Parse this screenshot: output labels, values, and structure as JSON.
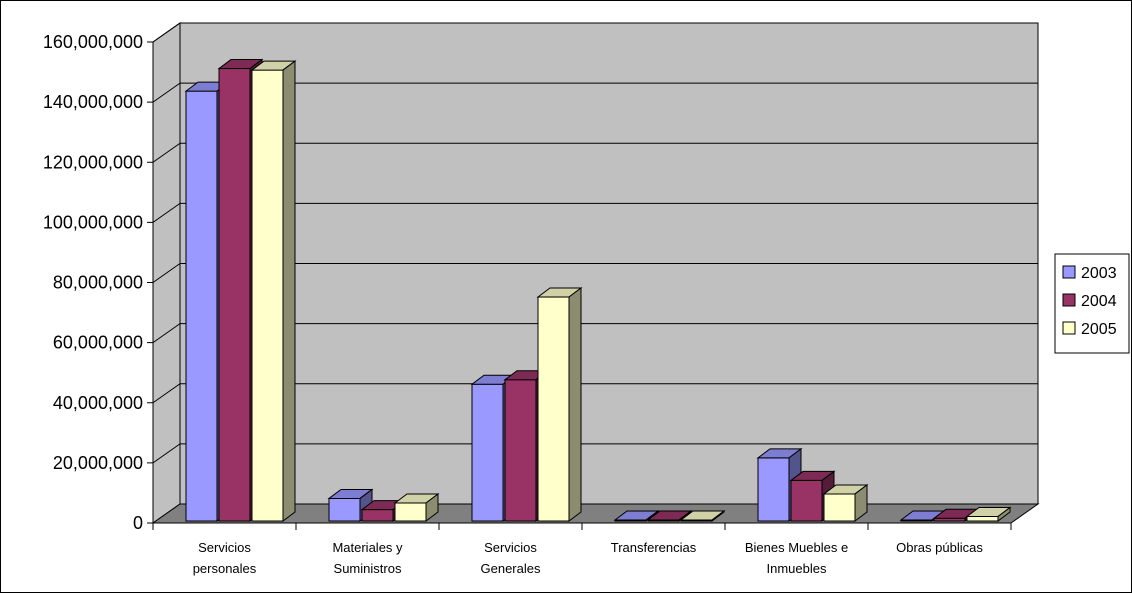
{
  "chart_data": {
    "type": "bar",
    "title": "",
    "xlabel": "",
    "ylabel": "",
    "ylim": [
      0,
      160000000
    ],
    "yticks": [
      "0",
      "20,000,000",
      "40,000,000",
      "60,000,000",
      "80,000,000",
      "100,000,000",
      "120,000,000",
      "140,000,000",
      "160,000,000"
    ],
    "ytick_values": [
      0,
      20000000,
      40000000,
      60000000,
      80000000,
      100000000,
      120000000,
      140000000,
      160000000
    ],
    "categories": [
      [
        "Servicios",
        "personales"
      ],
      [
        "Materiales y",
        "Suministros"
      ],
      [
        "Servicios",
        "Generales"
      ],
      [
        "Transferencias"
      ],
      [
        "Bienes Muebles e",
        "Inmuebles"
      ],
      [
        "Obras públicas"
      ]
    ],
    "series": [
      {
        "name": "2003",
        "color": "#9999ff",
        "values": [
          143000000,
          7500000,
          45500000,
          200000,
          21000000,
          200000
        ]
      },
      {
        "name": "2004",
        "color": "#993366",
        "values": [
          150500000,
          3800000,
          47000000,
          200000,
          13500000,
          900000
        ]
      },
      {
        "name": "2005",
        "color": "#ffffcc",
        "values": [
          150000000,
          6000000,
          74500000,
          200000,
          9000000,
          1500000
        ]
      }
    ],
    "grid": true,
    "legend": "right",
    "wall_color": "#c0c0c0",
    "floor_color": "#808080"
  }
}
